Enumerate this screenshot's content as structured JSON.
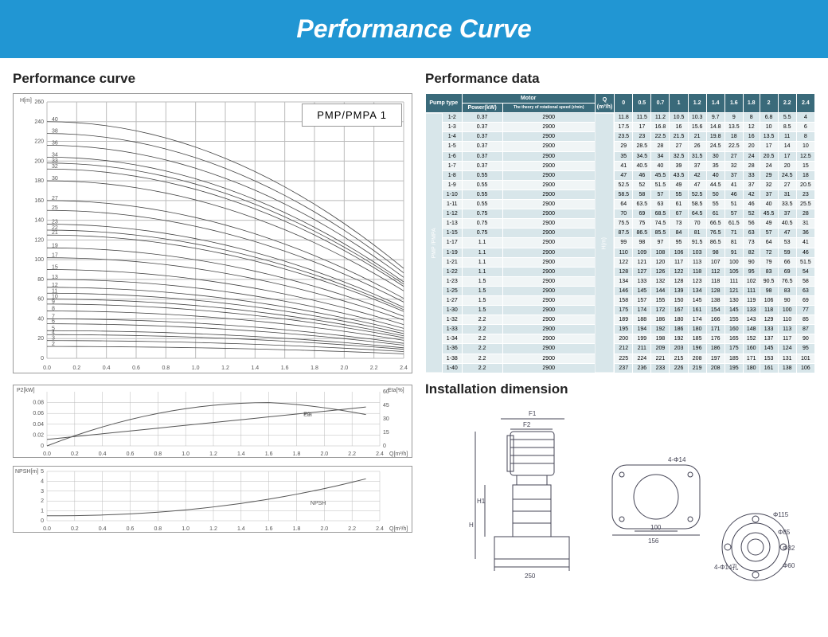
{
  "banner": "Performance Curve",
  "left": {
    "title": "Performance curve",
    "main_chart": {
      "type": "line",
      "label_box": "PMP/PMPA 1",
      "y_label": "H[m]",
      "x_label": "Q[m³/h]",
      "xlim": [
        0,
        2.4
      ],
      "xtick_step": 0.2,
      "ylim": [
        0,
        260
      ],
      "ytick_step": 20,
      "curve_labels": [
        "2",
        "3",
        "4",
        "5",
        "6",
        "7",
        "8",
        "9",
        "10",
        "11",
        "12",
        "13",
        "15",
        "17",
        "19",
        "21",
        "22",
        "23",
        "25",
        "27",
        "30",
        "32",
        "33",
        "34",
        "36",
        "38",
        "40"
      ],
      "curve_start_y": [
        12,
        18,
        24,
        28,
        35,
        40,
        48,
        55,
        60,
        66,
        72,
        80,
        90,
        102,
        112,
        125,
        130,
        136,
        150,
        160,
        180,
        192,
        198,
        204,
        216,
        228,
        240
      ],
      "background_color": "#ffffff",
      "grid_color": "#bbbbbb",
      "curve_color": "#444444"
    },
    "p2_chart": {
      "type": "line",
      "y_left": "P2[kW]",
      "y_right": "Eta[%]",
      "xlim": [
        0,
        2.4
      ],
      "xtick_step": 0.2,
      "ylim_left": [
        0,
        0.1
      ],
      "ytick_left": [
        0,
        0.02,
        0.04,
        0.06,
        0.08
      ],
      "ylim_right": [
        0,
        60
      ],
      "ytick_right": [
        0,
        15,
        30,
        45,
        60
      ],
      "series": [
        "P2",
        "Eta"
      ]
    },
    "npsh_chart": {
      "type": "line",
      "y_label": "NPSH[m]",
      "xlim": [
        0,
        2.4
      ],
      "xtick_step": 0.2,
      "ylim": [
        0,
        5
      ],
      "ytick_step": 1,
      "label": "NPSH"
    }
  },
  "right": {
    "title": "Performance data",
    "install_title": "Installation dimension",
    "table": {
      "header_top": [
        "Pump type",
        "Motor",
        "Q (m³/h)",
        "0",
        "0.5",
        "0.7",
        "1",
        "1.2",
        "1.4",
        "1.6",
        "1.8",
        "2",
        "2.2",
        "2.4"
      ],
      "header_motor": [
        "Power(kW)",
        "The theory of rotational speed (r/min)"
      ],
      "row_group_label": "PMP /PMPA",
      "unit_label": "H(m)",
      "rows": [
        [
          "1-2",
          "0.37",
          "2900",
          "11.8",
          "11.5",
          "11.2",
          "10.5",
          "10.3",
          "9.7",
          "9",
          "8",
          "6.8",
          "5.5",
          "4"
        ],
        [
          "1-3",
          "0.37",
          "2900",
          "17.5",
          "17",
          "16.8",
          "16",
          "15.6",
          "14.8",
          "13.5",
          "12",
          "10",
          "8.5",
          "6"
        ],
        [
          "1-4",
          "0.37",
          "2900",
          "23.5",
          "23",
          "22.5",
          "21.5",
          "21",
          "19.8",
          "18",
          "16",
          "13.5",
          "11",
          "8"
        ],
        [
          "1-5",
          "0.37",
          "2900",
          "29",
          "28.5",
          "28",
          "27",
          "26",
          "24.5",
          "22.5",
          "20",
          "17",
          "14",
          "10"
        ],
        [
          "1-6",
          "0.37",
          "2900",
          "35",
          "34.5",
          "34",
          "32.5",
          "31.5",
          "30",
          "27",
          "24",
          "20.5",
          "17",
          "12.5"
        ],
        [
          "1-7",
          "0.37",
          "2900",
          "41",
          "40.5",
          "40",
          "39",
          "37",
          "35",
          "32",
          "28",
          "24",
          "20",
          "15"
        ],
        [
          "1-8",
          "0.55",
          "2900",
          "47",
          "46",
          "45.5",
          "43.5",
          "42",
          "40",
          "37",
          "33",
          "29",
          "24.5",
          "18"
        ],
        [
          "1-9",
          "0.55",
          "2900",
          "52.5",
          "52",
          "51.5",
          "49",
          "47",
          "44.5",
          "41",
          "37",
          "32",
          "27",
          "20.5"
        ],
        [
          "1-10",
          "0.55",
          "2900",
          "58.5",
          "58",
          "57",
          "55",
          "52.5",
          "50",
          "46",
          "42",
          "37",
          "31",
          "23"
        ],
        [
          "1-11",
          "0.55",
          "2900",
          "64",
          "63.5",
          "63",
          "61",
          "58.5",
          "55",
          "51",
          "46",
          "40",
          "33.5",
          "25.5"
        ],
        [
          "1-12",
          "0.75",
          "2900",
          "70",
          "69",
          "68.5",
          "67",
          "64.5",
          "61",
          "57",
          "52",
          "45.5",
          "37",
          "28"
        ],
        [
          "1-13",
          "0.75",
          "2900",
          "75.5",
          "75",
          "74.5",
          "73",
          "70",
          "66.5",
          "61.5",
          "56",
          "49",
          "40.5",
          "31"
        ],
        [
          "1-15",
          "0.75",
          "2900",
          "87.5",
          "86.5",
          "85.5",
          "84",
          "81",
          "76.5",
          "71",
          "63",
          "57",
          "47",
          "36"
        ],
        [
          "1-17",
          "1.1",
          "2900",
          "99",
          "98",
          "97",
          "95",
          "91.5",
          "86.5",
          "81",
          "73",
          "64",
          "53",
          "41"
        ],
        [
          "1-19",
          "1.1",
          "2900",
          "110",
          "109",
          "108",
          "106",
          "103",
          "98",
          "91",
          "82",
          "72",
          "59",
          "46"
        ],
        [
          "1-21",
          "1.1",
          "2900",
          "122",
          "121",
          "120",
          "117",
          "113",
          "107",
          "100",
          "90",
          "79",
          "66",
          "51.5"
        ],
        [
          "1-22",
          "1.1",
          "2900",
          "128",
          "127",
          "126",
          "122",
          "118",
          "112",
          "105",
          "95",
          "83",
          "69",
          "54"
        ],
        [
          "1-23",
          "1.5",
          "2900",
          "134",
          "133",
          "132",
          "128",
          "123",
          "118",
          "111",
          "102",
          "90.5",
          "76.5",
          "58"
        ],
        [
          "1-25",
          "1.5",
          "2900",
          "146",
          "145",
          "144",
          "139",
          "134",
          "128",
          "121",
          "111",
          "98",
          "83",
          "63"
        ],
        [
          "1-27",
          "1.5",
          "2900",
          "158",
          "157",
          "155",
          "150",
          "145",
          "138",
          "130",
          "119",
          "106",
          "90",
          "69"
        ],
        [
          "1-30",
          "1.5",
          "2900",
          "175",
          "174",
          "172",
          "167",
          "161",
          "154",
          "145",
          "133",
          "118",
          "100",
          "77"
        ],
        [
          "1-32",
          "2.2",
          "2900",
          "189",
          "188",
          "186",
          "180",
          "174",
          "166",
          "155",
          "143",
          "129",
          "110",
          "85"
        ],
        [
          "1-33",
          "2.2",
          "2900",
          "195",
          "194",
          "192",
          "186",
          "180",
          "171",
          "160",
          "148",
          "133",
          "113",
          "87"
        ],
        [
          "1-34",
          "2.2",
          "2900",
          "200",
          "199",
          "198",
          "192",
          "185",
          "176",
          "165",
          "152",
          "137",
          "117",
          "90"
        ],
        [
          "1-36",
          "2.2",
          "2900",
          "212",
          "211",
          "209",
          "203",
          "196",
          "186",
          "175",
          "160",
          "145",
          "124",
          "95"
        ],
        [
          "1-38",
          "2.2",
          "2900",
          "225",
          "224",
          "221",
          "215",
          "208",
          "197",
          "185",
          "171",
          "153",
          "131",
          "101"
        ],
        [
          "1-40",
          "2.2",
          "2900",
          "237",
          "236",
          "233",
          "226",
          "219",
          "208",
          "195",
          "180",
          "161",
          "138",
          "106"
        ]
      ]
    },
    "dimensions": {
      "labels": [
        "F1",
        "F2",
        "H1",
        "H",
        "4-Φ14",
        "100",
        "156",
        "250",
        "Φ115",
        "Φ85",
        "Φ32",
        "4-Φ14孔",
        "Φ60"
      ]
    }
  }
}
